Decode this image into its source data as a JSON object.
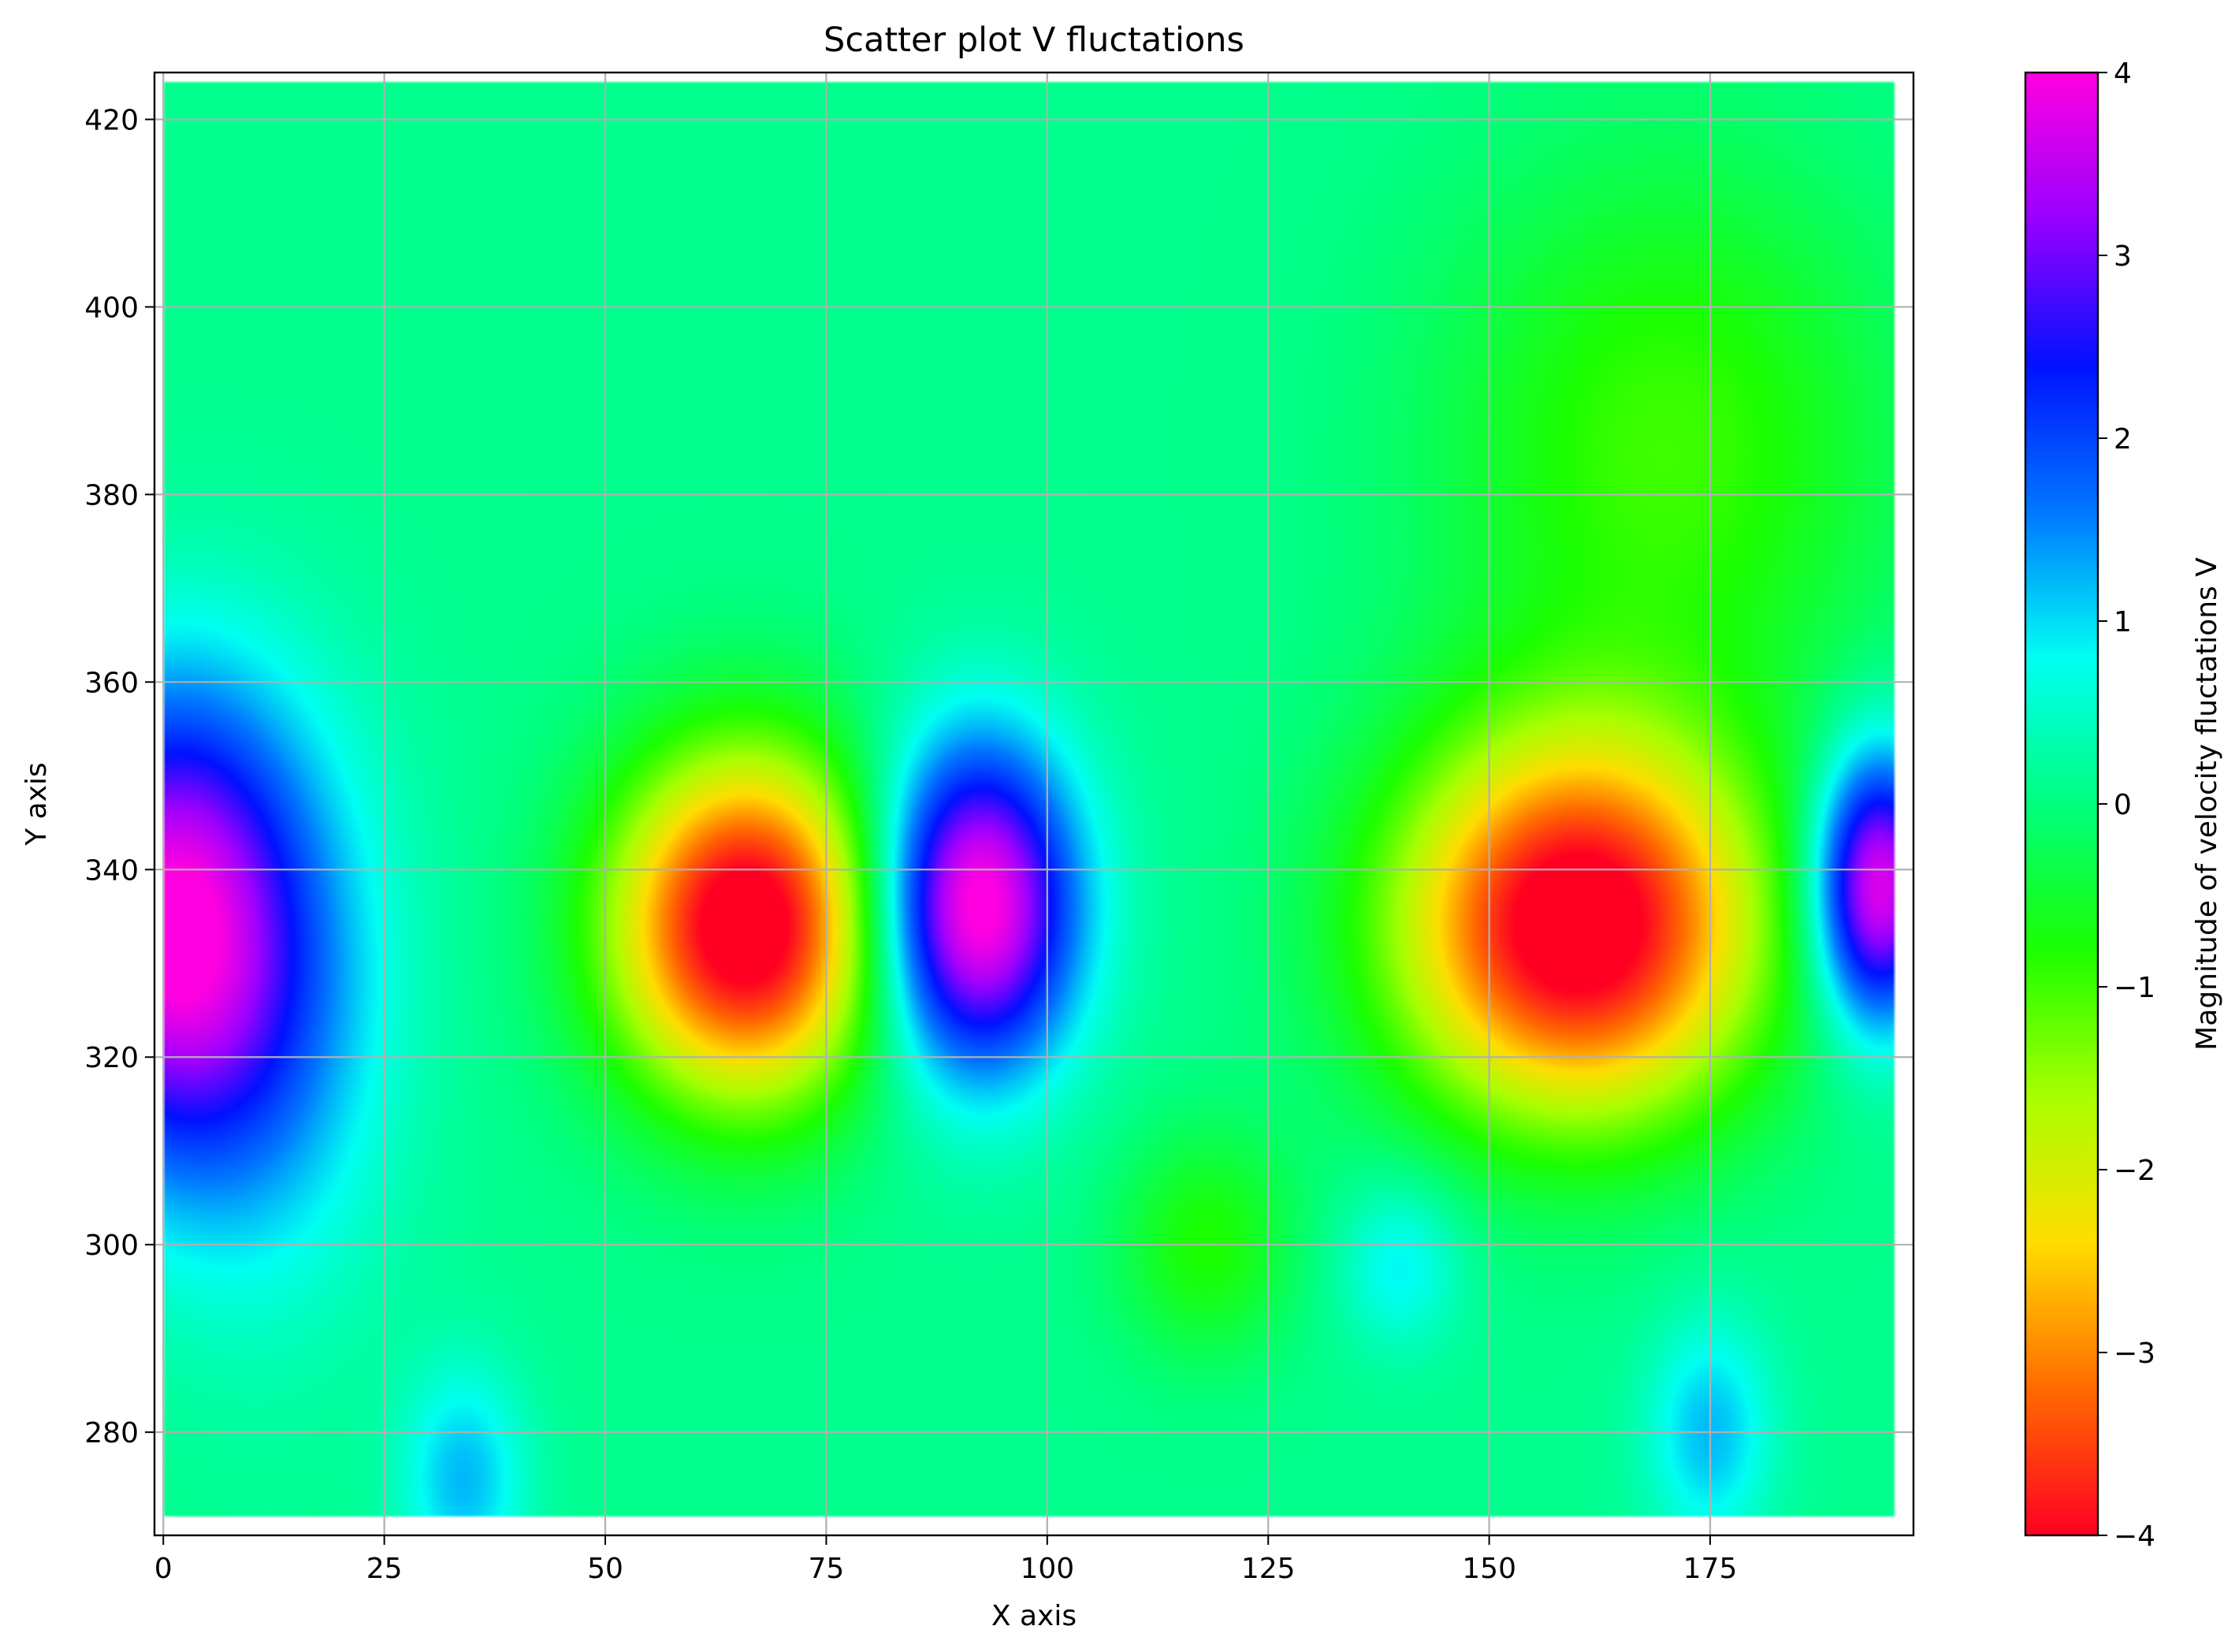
{
  "chart_data": {
    "type": "scatter",
    "title": "Scatter plot V fluctations",
    "xlabel": "X axis",
    "ylabel": "Y axis",
    "xlim": [
      -1,
      198
    ],
    "ylim": [
      269,
      425
    ],
    "xticks": [
      0,
      25,
      50,
      75,
      100,
      125,
      150,
      175
    ],
    "xtick_labels": [
      "0",
      "25",
      "50",
      "75",
      "100",
      "125",
      "150",
      "175"
    ],
    "yticks": [
      280,
      300,
      320,
      340,
      360,
      380,
      400,
      420
    ],
    "ytick_labels": [
      "280",
      "300",
      "320",
      "340",
      "360",
      "380",
      "400",
      "420"
    ],
    "grid": true,
    "data_extent": {
      "x": [
        0,
        196
      ],
      "y": [
        271,
        424
      ]
    },
    "colormap": "hsv",
    "colorbar": {
      "label": "Magnitude of velocity fluctations V",
      "vmin": -4,
      "vmax": 4,
      "ticks": [
        -4,
        -3,
        -2,
        -1,
        0,
        1,
        2,
        3,
        4
      ],
      "tick_labels": [
        "−4",
        "−3",
        "−2",
        "−1",
        "0",
        "1",
        "2",
        "3",
        "4"
      ],
      "colors": [
        "#ff0022",
        "#ff6a00",
        "#ffdd00",
        "#a8ff00",
        "#1bff00",
        "#00ff7e",
        "#00fff2",
        "#0077ff",
        "#0011ff",
        "#9900ff",
        "#ff00e0"
      ]
    },
    "background_value": 0.1,
    "features": [
      {
        "x": 0,
        "y": 334,
        "value": 3.6,
        "sx": 14,
        "sy": 24
      },
      {
        "x": 12,
        "y": 326,
        "value": 1.2,
        "sx": 14,
        "sy": 30
      },
      {
        "x": 34,
        "y": 275,
        "value": 1.1,
        "sx": 7,
        "sy": 12
      },
      {
        "x": 66,
        "y": 334,
        "value": -4.6,
        "sx": 15,
        "sy": 18
      },
      {
        "x": 92,
        "y": 336,
        "value": 4.2,
        "sx": 11,
        "sy": 17
      },
      {
        "x": 118,
        "y": 300,
        "value": -0.9,
        "sx": 10,
        "sy": 12
      },
      {
        "x": 160,
        "y": 334,
        "value": -4.6,
        "sx": 20,
        "sy": 20
      },
      {
        "x": 140,
        "y": 298,
        "value": 0.8,
        "sx": 7,
        "sy": 9
      },
      {
        "x": 175,
        "y": 280,
        "value": 1.1,
        "sx": 7,
        "sy": 12
      },
      {
        "x": 194,
        "y": 338,
        "value": 3.9,
        "sx": 7,
        "sy": 14
      },
      {
        "x": 170,
        "y": 385,
        "value": -1.1,
        "sx": 25,
        "sy": 30
      }
    ]
  }
}
